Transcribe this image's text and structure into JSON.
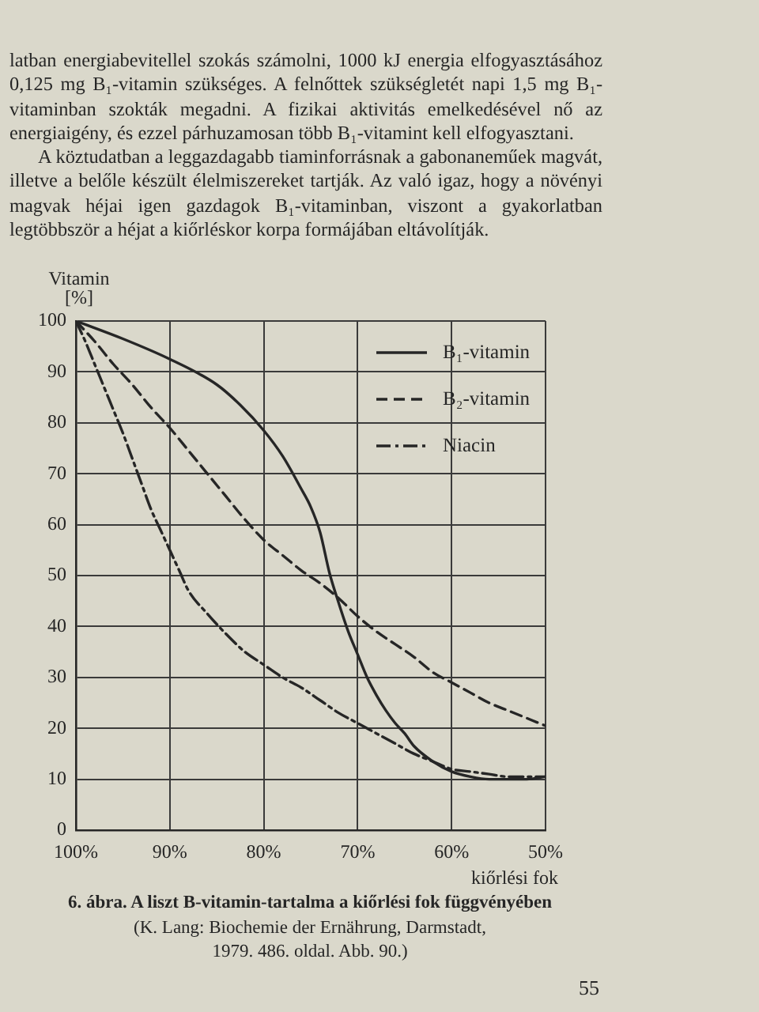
{
  "chart_data": {
    "type": "line",
    "title": "6. ábra. A liszt B-vitamin-tartalma a kiőrlési fok függvényében",
    "xlabel": "kiőrlési fok",
    "ylabel": "Vitamin [%]",
    "annotations": [
      "latban energiabevitellel szokás számolni, 1000 kJ energia elfogyasztásához 0,125 mg B₁-vitamin szükséges. A felnőttek szükségletét napi 1,5 mg B₁-vitaminban szokták megadni. A fizikai aktivitás emelkedésével nő az energiaigény, és ezzel párhuzamosan több B₁-vitamint kell elfogyasztani.",
      "A köztudatban a leggazdagabb tiaminforrásnak a gabonaneműek magvát, illetve a belőle készült élelmiszereket tartják. Az való igaz, hogy a növényi magvak héjai igen gazdagok B₁-vitaminban, viszont a gyakorlatban legtöbbször a héjat a kiőrléskor korpa formájában eltávolítják.",
      "(K. Lang: Biochemie der Ernährung, Darmstadt, 1979. 486. oldal. Abb. 90.)",
      "55"
    ],
    "xlim": [
      100,
      50
    ],
    "xticks": [
      {
        "value": 100,
        "label": "100%"
      },
      {
        "value": 90,
        "label": "90%"
      },
      {
        "value": 80,
        "label": "80%"
      },
      {
        "value": 70,
        "label": "70%"
      },
      {
        "value": 60,
        "label": "60%"
      },
      {
        "value": 50,
        "label": "50%"
      }
    ],
    "ylim": [
      0,
      100
    ],
    "yticks": [
      0,
      10,
      20,
      30,
      40,
      50,
      60,
      70,
      80,
      90,
      100
    ],
    "grid": true,
    "legend": "top right",
    "series": [
      {
        "name": "B₁-vitamin",
        "color": "#262626",
        "line_style": "solid",
        "x": [
          100,
          95,
          90,
          85,
          82.5,
          80,
          78,
          76,
          75,
          74,
          73,
          72,
          71,
          70,
          69,
          68,
          67,
          66,
          65,
          64,
          62,
          60,
          58,
          56,
          54,
          52,
          50
        ],
        "values": [
          100,
          96.5,
          92.5,
          87.5,
          83.5,
          78.5,
          73.5,
          67,
          63.5,
          58.5,
          50.5,
          44.5,
          39,
          34.5,
          30,
          26.5,
          23.5,
          21,
          19,
          16.5,
          13.5,
          11.5,
          10.5,
          10,
          10,
          10,
          10.5
        ]
      },
      {
        "name": "B₂-vitamin",
        "color": "#262626",
        "line_style": "dashed",
        "x": [
          100,
          98,
          96,
          94,
          92,
          90,
          88,
          86,
          84,
          82,
          80,
          78,
          76,
          74,
          72,
          70,
          68,
          66,
          64,
          62,
          60,
          58,
          56,
          54,
          52,
          50
        ],
        "values": [
          100,
          96,
          91.5,
          87.5,
          83,
          79,
          74.5,
          70,
          65.5,
          61,
          57,
          54,
          51,
          48.5,
          45.5,
          42,
          39,
          36.5,
          34,
          31,
          29,
          27,
          25,
          23.5,
          22,
          20.5
        ]
      },
      {
        "name": "Niacin",
        "color": "#262626",
        "line_style": "dashdot",
        "x": [
          100,
          99,
          98,
          97,
          96,
          95,
          94,
          93,
          92,
          91,
          90,
          89,
          88,
          86,
          84,
          82,
          80,
          78,
          76,
          74,
          72,
          70,
          68,
          66,
          64,
          62,
          60,
          58,
          56,
          54,
          52,
          50
        ],
        "values": [
          100,
          96,
          91.5,
          87,
          82.5,
          78,
          73,
          68,
          63,
          59,
          55,
          51,
          47,
          42.5,
          38.5,
          35,
          32.5,
          30,
          28,
          25.5,
          23,
          21,
          19,
          17,
          15,
          13.5,
          12,
          11.5,
          11,
          10.5,
          10.5,
          10.5
        ]
      }
    ]
  }
}
